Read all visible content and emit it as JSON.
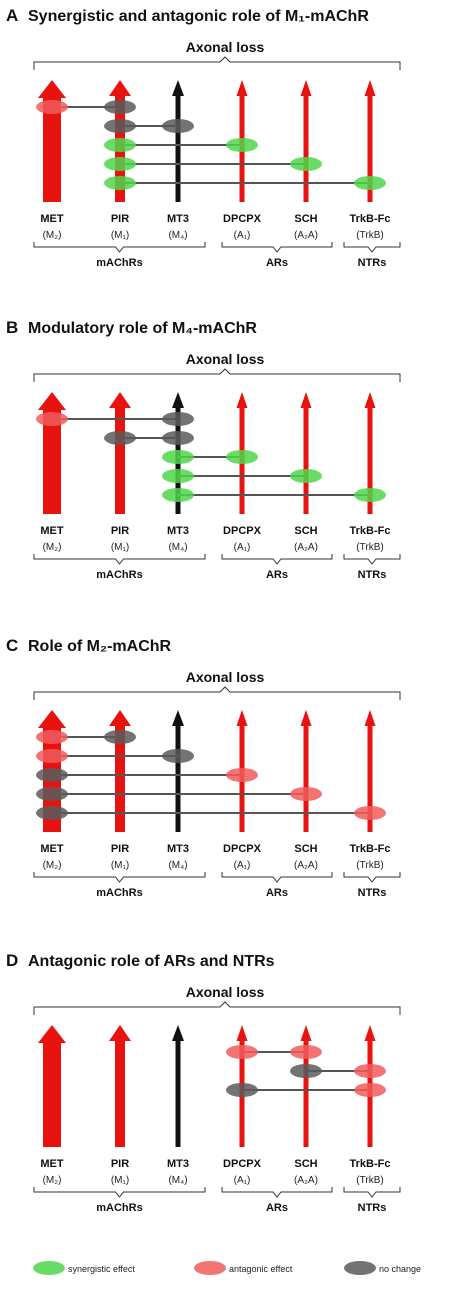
{
  "colors": {
    "red": "#e8120f",
    "black": "#111111",
    "synergistic": "#4fd64b",
    "antagonic": "#f25c5c",
    "nochange": "#5a5a5a",
    "line": "#555555"
  },
  "columns": [
    {
      "name": "MET",
      "receptor": "(M₂)"
    },
    {
      "name": "PIR",
      "receptor": "(M₁)"
    },
    {
      "name": "MT3",
      "receptor": "(M₄)"
    },
    {
      "name": "DPCPX",
      "receptor": "(A₁)"
    },
    {
      "name": "SCH",
      "receptor": "(A₂A)"
    },
    {
      "name": "TrkB-Fc",
      "receptor": "(TrkB)"
    }
  ],
  "groups": [
    "mAChRs",
    "ARs",
    "NTRs"
  ],
  "axonal_loss": "Axonal loss",
  "panels": [
    {
      "letter": "A",
      "title": "Synergistic and antagonic role of M₁-mAChR",
      "arrows": [
        "red-thick",
        "red-medium",
        "black",
        "red-thin",
        "red-thin",
        "red-thin"
      ],
      "connections": [
        {
          "from": 0,
          "to": 1,
          "from_effect": "antagonic",
          "to_effect": "nochange"
        },
        {
          "from": 1,
          "to": 2,
          "from_effect": "nochange",
          "to_effect": "nochange"
        },
        {
          "from": 1,
          "to": 3,
          "from_effect": "synergistic",
          "to_effect": "synergistic"
        },
        {
          "from": 1,
          "to": 4,
          "from_effect": "synergistic",
          "to_effect": "synergistic"
        },
        {
          "from": 1,
          "to": 5,
          "from_effect": "synergistic",
          "to_effect": "synergistic"
        }
      ]
    },
    {
      "letter": "B",
      "title": "Modulatory role of M₄-mAChR",
      "arrows": [
        "red-thick",
        "red-medium",
        "black",
        "red-thin",
        "red-thin",
        "red-thin"
      ],
      "connections": [
        {
          "from": 0,
          "to": 2,
          "from_effect": "antagonic",
          "to_effect": "nochange"
        },
        {
          "from": 1,
          "to": 2,
          "from_effect": "nochange",
          "to_effect": "nochange"
        },
        {
          "from": 2,
          "to": 3,
          "from_effect": "synergistic",
          "to_effect": "synergistic"
        },
        {
          "from": 2,
          "to": 4,
          "from_effect": "synergistic",
          "to_effect": "synergistic"
        },
        {
          "from": 2,
          "to": 5,
          "from_effect": "synergistic",
          "to_effect": "synergistic"
        }
      ]
    },
    {
      "letter": "C",
      "title": "Role of M₂-mAChR",
      "arrows": [
        "red-thick",
        "red-medium",
        "black",
        "red-thin",
        "red-thin",
        "red-thin"
      ],
      "connections": [
        {
          "from": 0,
          "to": 1,
          "from_effect": "antagonic",
          "to_effect": "nochange"
        },
        {
          "from": 0,
          "to": 2,
          "from_effect": "antagonic",
          "to_effect": "nochange"
        },
        {
          "from": 0,
          "to": 3,
          "from_effect": "nochange",
          "to_effect": "antagonic"
        },
        {
          "from": 0,
          "to": 4,
          "from_effect": "nochange",
          "to_effect": "antagonic"
        },
        {
          "from": 0,
          "to": 5,
          "from_effect": "nochange",
          "to_effect": "antagonic"
        }
      ]
    },
    {
      "letter": "D",
      "title": "Antagonic role of ARs and NTRs",
      "arrows": [
        "red-thick",
        "red-medium",
        "black",
        "red-thin",
        "red-thin",
        "red-thin"
      ],
      "connections": [
        {
          "from": 3,
          "to": 4,
          "from_effect": "antagonic",
          "to_effect": "antagonic"
        },
        {
          "from": 4,
          "to": 5,
          "from_effect": "nochange",
          "to_effect": "antagonic"
        },
        {
          "from": 3,
          "to": 5,
          "from_effect": "nochange",
          "to_effect": "antagonic"
        }
      ]
    }
  ],
  "legend": [
    {
      "effect": "synergistic",
      "label": "synergistic effect"
    },
    {
      "effect": "antagonic",
      "label": "antagonic effect"
    },
    {
      "effect": "nochange",
      "label": "no change"
    }
  ]
}
